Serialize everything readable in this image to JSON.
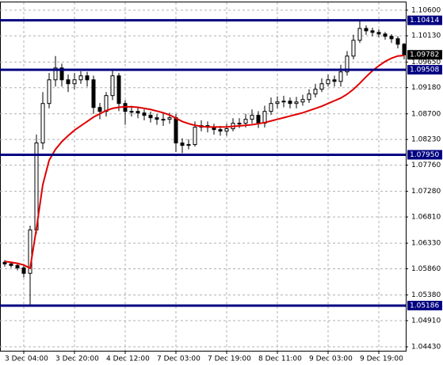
{
  "chart_data": {
    "type": "candlestick",
    "categories": [
      null,
      null,
      null,
      "3 Dec 04:00",
      null,
      null,
      null,
      null,
      null,
      null,
      null,
      "3 Dec 20:00",
      null,
      null,
      null,
      null,
      null,
      null,
      null,
      "4 Dec 12:00",
      null,
      null,
      null,
      null,
      null,
      null,
      null,
      "7 Dec 03:00",
      null,
      null,
      null,
      null,
      null,
      null,
      null,
      "7 Dec 19:00",
      null,
      null,
      null,
      null,
      null,
      null,
      null,
      "8 Dec 11:00",
      null,
      null,
      null,
      null,
      null,
      null,
      null,
      "9 Dec 03:00",
      null,
      null,
      null,
      null,
      null,
      null,
      null,
      "9 Dec 19:00",
      null,
      null,
      null,
      null
    ],
    "open": [
      1.0598,
      1.0595,
      1.05921,
      1.05878,
      1.05777,
      1.06573,
      1.08166,
      1.0889,
      1.09324,
      1.09541,
      1.09324,
      1.09252,
      1.09324,
      1.09397,
      1.09324,
      1.08817,
      1.08745,
      1.09035,
      1.09397,
      1.0889,
      1.08745,
      1.08745,
      1.08716,
      1.08673,
      1.08629,
      1.086,
      1.086,
      1.08629,
      1.08166,
      1.08122,
      1.08137,
      1.08455,
      1.08484,
      1.08455,
      1.08412,
      1.08383,
      1.08427,
      1.08528,
      1.08528,
      1.086,
      1.08673,
      1.08528,
      1.08745,
      1.0889,
      1.08918,
      1.08933,
      1.0889,
      1.08918,
      1.08962,
      1.09064,
      1.09151,
      1.09252,
      1.09324,
      1.09295,
      1.09469,
      1.09759,
      1.10048,
      1.10265,
      1.10222,
      1.10193,
      1.10164,
      1.10121,
      1.10077,
      1.09976
    ],
    "high": [
      1.0602,
      1.0599,
      1.0596,
      1.0592,
      1.0665,
      1.0832,
      1.091,
      1.0945,
      1.0976,
      1.0962,
      1.0942,
      1.0945,
      1.0948,
      1.0947,
      1.094,
      1.089,
      1.091,
      1.09508,
      1.0945,
      1.0895,
      1.0885,
      1.0882,
      1.0878,
      1.0874,
      1.087,
      1.087,
      1.0872,
      1.087,
      1.0825,
      1.0823,
      1.0856,
      1.0858,
      1.0856,
      1.0852,
      1.0848,
      1.0852,
      1.0862,
      1.0862,
      1.087,
      1.0878,
      1.0875,
      1.0885,
      1.09,
      1.0902,
      1.0903,
      1.09,
      1.0901,
      1.0905,
      1.0915,
      1.0925,
      1.0935,
      1.0942,
      1.094,
      1.096,
      1.0985,
      1.1015,
      1.10414,
      1.1032,
      1.1028,
      1.1025,
      1.102,
      1.1016,
      1.1012,
      1.1
    ],
    "low": [
      1.059,
      1.0588,
      1.0583,
      1.057,
      1.05186,
      1.065,
      1.0805,
      1.088,
      1.092,
      1.092,
      1.091,
      1.0915,
      1.0925,
      1.092,
      1.087,
      1.086,
      1.0865,
      1.0895,
      1.0875,
      1.085,
      1.0865,
      1.0862,
      1.0858,
      1.0854,
      1.085,
      1.0848,
      1.0852,
      1.08,
      1.0798,
      1.0805,
      1.081,
      1.0838,
      1.0836,
      1.0832,
      1.083,
      1.083,
      1.0838,
      1.0844,
      1.0845,
      1.0852,
      1.0844,
      1.0845,
      1.0868,
      1.088,
      1.0882,
      1.088,
      1.088,
      1.0885,
      1.089,
      1.09,
      1.091,
      1.092,
      1.092,
      1.092,
      1.094,
      1.097,
      1.1,
      1.1015,
      1.1012,
      1.101,
      1.1006,
      1.1,
      1.099,
      1.097
    ],
    "close": [
      1.0595,
      1.05921,
      1.05878,
      1.05777,
      1.06573,
      1.08166,
      1.0889,
      1.09324,
      1.09541,
      1.09324,
      1.09252,
      1.09324,
      1.09397,
      1.09324,
      1.08817,
      1.08745,
      1.09035,
      1.09397,
      1.0889,
      1.08745,
      1.08745,
      1.08716,
      1.08673,
      1.08629,
      1.086,
      1.086,
      1.08629,
      1.08166,
      1.08122,
      1.08137,
      1.08455,
      1.08484,
      1.08455,
      1.08412,
      1.08383,
      1.08427,
      1.08528,
      1.08528,
      1.086,
      1.08673,
      1.08528,
      1.08745,
      1.0889,
      1.08918,
      1.08933,
      1.0889,
      1.08918,
      1.08962,
      1.09064,
      1.09151,
      1.09252,
      1.09324,
      1.09295,
      1.09469,
      1.09759,
      1.10048,
      1.10265,
      1.10222,
      1.10193,
      1.10164,
      1.10121,
      1.10077,
      1.09976,
      1.09782
    ],
    "ma": {
      "color": "#e00000",
      "values": [
        1.05994,
        1.0598,
        1.0596,
        1.0593,
        1.0587,
        1.066,
        1.074,
        1.0785,
        1.0805,
        1.0819,
        1.083,
        1.084,
        1.0848,
        1.0856,
        1.0864,
        1.087,
        1.0876,
        1.088,
        1.0882,
        1.0883,
        1.0883,
        1.0882,
        1.088,
        1.0878,
        1.0875,
        1.0872,
        1.0868,
        1.0862,
        1.0856,
        1.0852,
        1.0849,
        1.0847,
        1.0846,
        1.0846,
        1.0846,
        1.0846,
        1.0847,
        1.0848,
        1.0849,
        1.085,
        1.0852,
        1.0854,
        1.0857,
        1.086,
        1.0863,
        1.0866,
        1.0869,
        1.0872,
        1.0876,
        1.088,
        1.0884,
        1.0889,
        1.0894,
        1.0899,
        1.0906,
        1.0915,
        1.0926,
        1.0938,
        1.0949,
        1.0958,
        1.0966,
        1.0972,
        1.0976,
        1.0977
      ]
    },
    "levels": [
      1.10414,
      1.09508,
      {
        "value": 1.0795,
        "label": "1.07950"
      },
      1.05186
    ],
    "level_color": "#000080",
    "current_price": 1.09782,
    "ylim": [
      1.04358,
      1.10743
    ],
    "yticks": [
      {
        "value": 1.106,
        "label": "1.10600"
      },
      {
        "value": 1.1013,
        "label": "1.10130"
      },
      {
        "value": 1.0965,
        "label": "1.09650"
      },
      {
        "value": 1.0918,
        "label": "1.09180"
      },
      {
        "value": 1.087,
        "label": "1.08700"
      },
      {
        "value": 1.0823,
        "label": "1.08230"
      },
      {
        "value": 1.0776,
        "label": "1.07760"
      },
      {
        "value": 1.0728,
        "label": "1.07280"
      },
      {
        "value": 1.0681,
        "label": "1.06810"
      },
      {
        "value": 1.0633,
        "label": "1.06330"
      },
      {
        "value": 1.0586,
        "label": "1.05860"
      },
      {
        "value": 1.0538,
        "label": "1.05380"
      },
      {
        "value": 1.0491,
        "label": "1.04910"
      },
      {
        "value": 1.0443,
        "label": "1.04430"
      }
    ],
    "grid": true
  }
}
